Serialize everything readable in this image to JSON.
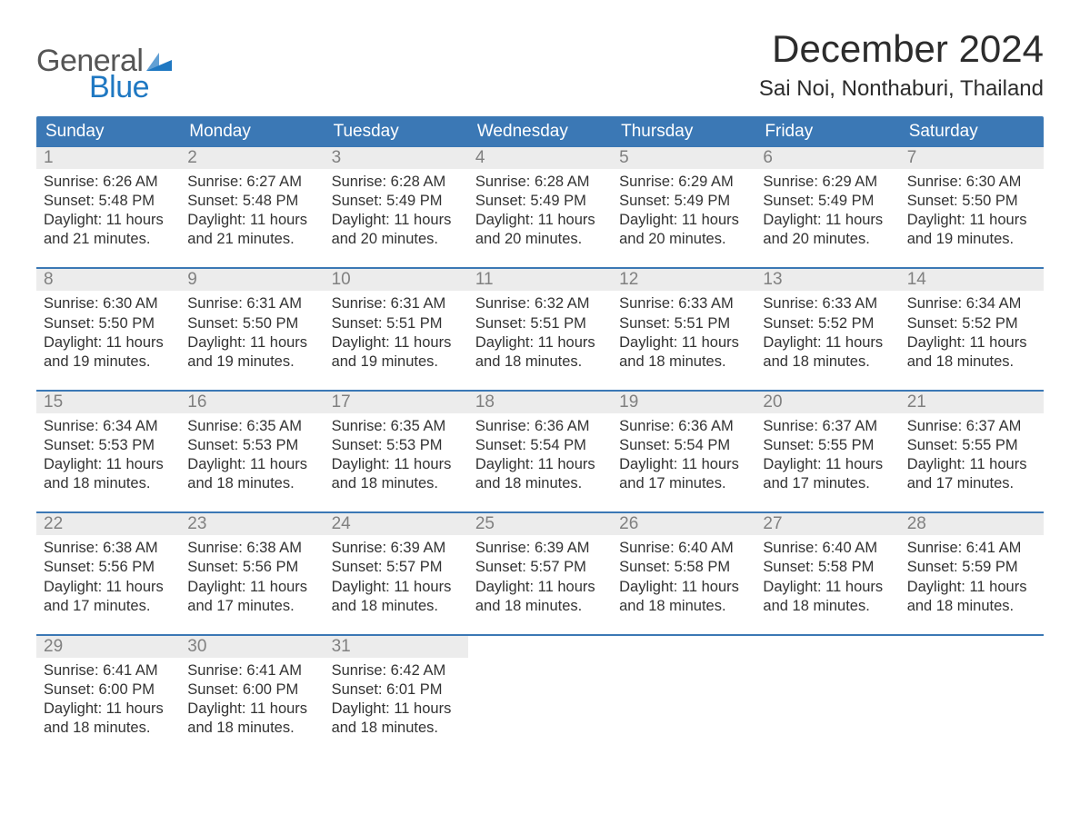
{
  "logo": {
    "general": "General",
    "blue": "Blue",
    "flag_color": "#1f78c2"
  },
  "title": "December 2024",
  "location": "Sai Noi, Nonthaburi, Thailand",
  "colors": {
    "header_bg": "#3b78b5",
    "header_text": "#ffffff",
    "date_bg": "#ececec",
    "date_text": "#808080",
    "border": "#3b78b5",
    "body_text": "#333333",
    "background": "#ffffff"
  },
  "day_headers": [
    "Sunday",
    "Monday",
    "Tuesday",
    "Wednesday",
    "Thursday",
    "Friday",
    "Saturday"
  ],
  "weeks": [
    [
      {
        "date": "1",
        "sunrise": "Sunrise: 6:26 AM",
        "sunset": "Sunset: 5:48 PM",
        "daylight1": "Daylight: 11 hours",
        "daylight2": "and 21 minutes."
      },
      {
        "date": "2",
        "sunrise": "Sunrise: 6:27 AM",
        "sunset": "Sunset: 5:48 PM",
        "daylight1": "Daylight: 11 hours",
        "daylight2": "and 21 minutes."
      },
      {
        "date": "3",
        "sunrise": "Sunrise: 6:28 AM",
        "sunset": "Sunset: 5:49 PM",
        "daylight1": "Daylight: 11 hours",
        "daylight2": "and 20 minutes."
      },
      {
        "date": "4",
        "sunrise": "Sunrise: 6:28 AM",
        "sunset": "Sunset: 5:49 PM",
        "daylight1": "Daylight: 11 hours",
        "daylight2": "and 20 minutes."
      },
      {
        "date": "5",
        "sunrise": "Sunrise: 6:29 AM",
        "sunset": "Sunset: 5:49 PM",
        "daylight1": "Daylight: 11 hours",
        "daylight2": "and 20 minutes."
      },
      {
        "date": "6",
        "sunrise": "Sunrise: 6:29 AM",
        "sunset": "Sunset: 5:49 PM",
        "daylight1": "Daylight: 11 hours",
        "daylight2": "and 20 minutes."
      },
      {
        "date": "7",
        "sunrise": "Sunrise: 6:30 AM",
        "sunset": "Sunset: 5:50 PM",
        "daylight1": "Daylight: 11 hours",
        "daylight2": "and 19 minutes."
      }
    ],
    [
      {
        "date": "8",
        "sunrise": "Sunrise: 6:30 AM",
        "sunset": "Sunset: 5:50 PM",
        "daylight1": "Daylight: 11 hours",
        "daylight2": "and 19 minutes."
      },
      {
        "date": "9",
        "sunrise": "Sunrise: 6:31 AM",
        "sunset": "Sunset: 5:50 PM",
        "daylight1": "Daylight: 11 hours",
        "daylight2": "and 19 minutes."
      },
      {
        "date": "10",
        "sunrise": "Sunrise: 6:31 AM",
        "sunset": "Sunset: 5:51 PM",
        "daylight1": "Daylight: 11 hours",
        "daylight2": "and 19 minutes."
      },
      {
        "date": "11",
        "sunrise": "Sunrise: 6:32 AM",
        "sunset": "Sunset: 5:51 PM",
        "daylight1": "Daylight: 11 hours",
        "daylight2": "and 18 minutes."
      },
      {
        "date": "12",
        "sunrise": "Sunrise: 6:33 AM",
        "sunset": "Sunset: 5:51 PM",
        "daylight1": "Daylight: 11 hours",
        "daylight2": "and 18 minutes."
      },
      {
        "date": "13",
        "sunrise": "Sunrise: 6:33 AM",
        "sunset": "Sunset: 5:52 PM",
        "daylight1": "Daylight: 11 hours",
        "daylight2": "and 18 minutes."
      },
      {
        "date": "14",
        "sunrise": "Sunrise: 6:34 AM",
        "sunset": "Sunset: 5:52 PM",
        "daylight1": "Daylight: 11 hours",
        "daylight2": "and 18 minutes."
      }
    ],
    [
      {
        "date": "15",
        "sunrise": "Sunrise: 6:34 AM",
        "sunset": "Sunset: 5:53 PM",
        "daylight1": "Daylight: 11 hours",
        "daylight2": "and 18 minutes."
      },
      {
        "date": "16",
        "sunrise": "Sunrise: 6:35 AM",
        "sunset": "Sunset: 5:53 PM",
        "daylight1": "Daylight: 11 hours",
        "daylight2": "and 18 minutes."
      },
      {
        "date": "17",
        "sunrise": "Sunrise: 6:35 AM",
        "sunset": "Sunset: 5:53 PM",
        "daylight1": "Daylight: 11 hours",
        "daylight2": "and 18 minutes."
      },
      {
        "date": "18",
        "sunrise": "Sunrise: 6:36 AM",
        "sunset": "Sunset: 5:54 PM",
        "daylight1": "Daylight: 11 hours",
        "daylight2": "and 18 minutes."
      },
      {
        "date": "19",
        "sunrise": "Sunrise: 6:36 AM",
        "sunset": "Sunset: 5:54 PM",
        "daylight1": "Daylight: 11 hours",
        "daylight2": "and 17 minutes."
      },
      {
        "date": "20",
        "sunrise": "Sunrise: 6:37 AM",
        "sunset": "Sunset: 5:55 PM",
        "daylight1": "Daylight: 11 hours",
        "daylight2": "and 17 minutes."
      },
      {
        "date": "21",
        "sunrise": "Sunrise: 6:37 AM",
        "sunset": "Sunset: 5:55 PM",
        "daylight1": "Daylight: 11 hours",
        "daylight2": "and 17 minutes."
      }
    ],
    [
      {
        "date": "22",
        "sunrise": "Sunrise: 6:38 AM",
        "sunset": "Sunset: 5:56 PM",
        "daylight1": "Daylight: 11 hours",
        "daylight2": "and 17 minutes."
      },
      {
        "date": "23",
        "sunrise": "Sunrise: 6:38 AM",
        "sunset": "Sunset: 5:56 PM",
        "daylight1": "Daylight: 11 hours",
        "daylight2": "and 17 minutes."
      },
      {
        "date": "24",
        "sunrise": "Sunrise: 6:39 AM",
        "sunset": "Sunset: 5:57 PM",
        "daylight1": "Daylight: 11 hours",
        "daylight2": "and 18 minutes."
      },
      {
        "date": "25",
        "sunrise": "Sunrise: 6:39 AM",
        "sunset": "Sunset: 5:57 PM",
        "daylight1": "Daylight: 11 hours",
        "daylight2": "and 18 minutes."
      },
      {
        "date": "26",
        "sunrise": "Sunrise: 6:40 AM",
        "sunset": "Sunset: 5:58 PM",
        "daylight1": "Daylight: 11 hours",
        "daylight2": "and 18 minutes."
      },
      {
        "date": "27",
        "sunrise": "Sunrise: 6:40 AM",
        "sunset": "Sunset: 5:58 PM",
        "daylight1": "Daylight: 11 hours",
        "daylight2": "and 18 minutes."
      },
      {
        "date": "28",
        "sunrise": "Sunrise: 6:41 AM",
        "sunset": "Sunset: 5:59 PM",
        "daylight1": "Daylight: 11 hours",
        "daylight2": "and 18 minutes."
      }
    ],
    [
      {
        "date": "29",
        "sunrise": "Sunrise: 6:41 AM",
        "sunset": "Sunset: 6:00 PM",
        "daylight1": "Daylight: 11 hours",
        "daylight2": "and 18 minutes."
      },
      {
        "date": "30",
        "sunrise": "Sunrise: 6:41 AM",
        "sunset": "Sunset: 6:00 PM",
        "daylight1": "Daylight: 11 hours",
        "daylight2": "and 18 minutes."
      },
      {
        "date": "31",
        "sunrise": "Sunrise: 6:42 AM",
        "sunset": "Sunset: 6:01 PM",
        "daylight1": "Daylight: 11 hours",
        "daylight2": "and 18 minutes."
      },
      null,
      null,
      null,
      null
    ]
  ]
}
